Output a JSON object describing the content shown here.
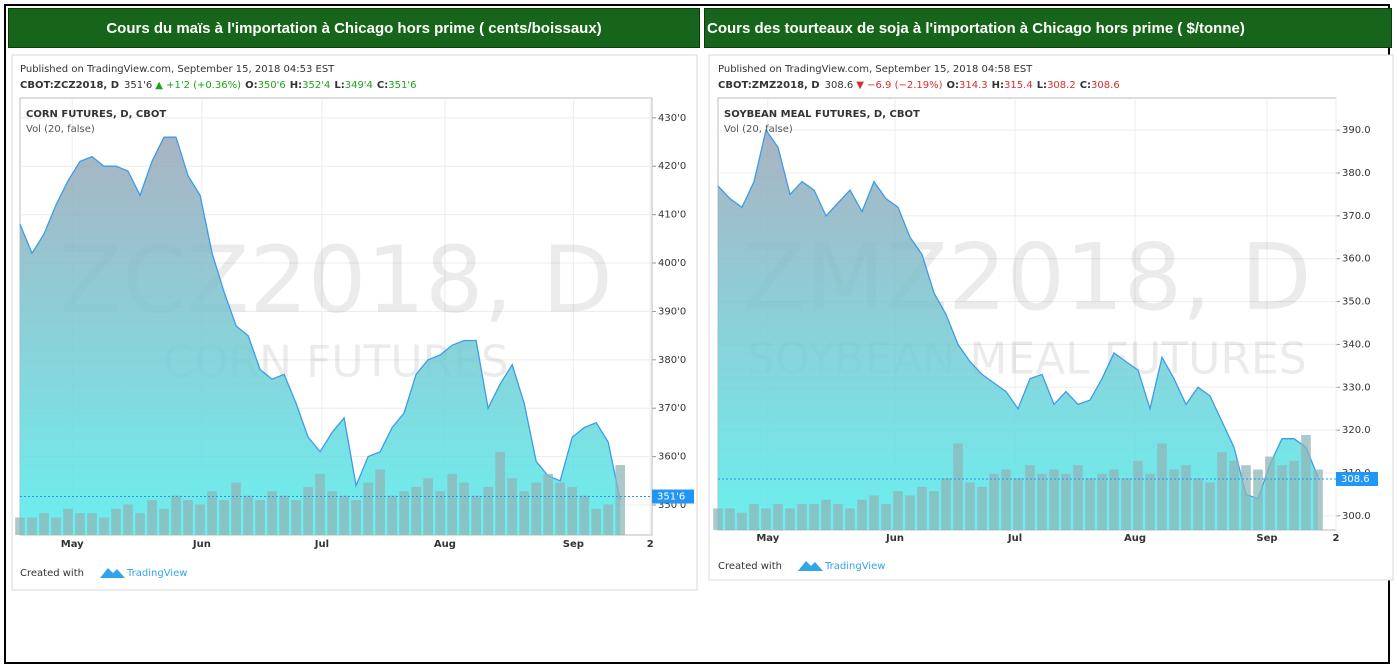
{
  "chart_data": [
    {
      "type": "area",
      "title": "Cours du maïs à l'importation à Chicago hors prime ( cents/boissaux)",
      "published": "Published on TradingView.com, September 15, 2018 04:53 EST",
      "quote": {
        "symbol": "CBOT:ZCZ2018, D",
        "last": "351'6",
        "change": "▲ +1'2 (+0.36%)",
        "color": "#1ea31e",
        "ohlc": [
          {
            "label": "O:",
            "value": "350'6"
          },
          {
            "label": "H:",
            "value": "352'4"
          },
          {
            "label": "L:",
            "value": "349'4"
          },
          {
            "label": "C:",
            "value": "351'6"
          }
        ]
      },
      "symbol_label": "CORN FUTURES, D, CBOT",
      "indicator_label": "Vol (20, false)",
      "watermark": [
        "ZCZ2018, D",
        "CORN FUTURES"
      ],
      "x": [
        0,
        2,
        4,
        6,
        8,
        10,
        12,
        14,
        16,
        18,
        20,
        22,
        24,
        26,
        28,
        30,
        32,
        34,
        36,
        38,
        40,
        42,
        44,
        46,
        48,
        50,
        52,
        54,
        56,
        58,
        60,
        62,
        64,
        66,
        68,
        70,
        72,
        74,
        76,
        78,
        80,
        82,
        84,
        86,
        88,
        90,
        92,
        94,
        96,
        98,
        100
      ],
      "xlim": [
        0,
        105.3
      ],
      "xticks": [
        {
          "value": 8.7,
          "label": "May"
        },
        {
          "value": 30.3,
          "label": "Jun"
        },
        {
          "value": 50.3,
          "label": "Jul"
        },
        {
          "value": 70.8,
          "label": "Aug"
        },
        {
          "value": 92.2,
          "label": "Sep"
        },
        {
          "value": 105,
          "label": "2"
        }
      ],
      "series": [
        {
          "color": "#3d9be9",
          "fill_colors": [
            "#9aa6b8",
            "#52ecec"
          ],
          "values": [
            408,
            402,
            406,
            412,
            417,
            421,
            422,
            420,
            420,
            419,
            414,
            421,
            426,
            426,
            418,
            414,
            402,
            394,
            387,
            385,
            378,
            376,
            377,
            371,
            364,
            361,
            365,
            368,
            354,
            360,
            361,
            366,
            369,
            377,
            380,
            381,
            383,
            384,
            384,
            370,
            375,
            379,
            371,
            359,
            356,
            355,
            364,
            366,
            367,
            363,
            351
          ]
        },
        {
          "type": "bar",
          "axis": "y2",
          "color": "#8fb6b8",
          "values": [
            4,
            4,
            5,
            4,
            6,
            5,
            5,
            4,
            6,
            7,
            5,
            8,
            6,
            9,
            8,
            7,
            10,
            8,
            12,
            9,
            8,
            10,
            9,
            8,
            11,
            14,
            10,
            9,
            8,
            12,
            15,
            9,
            10,
            11,
            13,
            10,
            14,
            12,
            9,
            11,
            19,
            13,
            10,
            12,
            14,
            12,
            11,
            9,
            6,
            7,
            16
          ]
        }
      ],
      "ylim": [
        343.8,
        434.1
      ],
      "yticks": [
        {
          "value": 350,
          "label": "350'0"
        },
        {
          "value": 360,
          "label": "360'0"
        },
        {
          "value": 370,
          "label": "370'0"
        },
        {
          "value": 380,
          "label": "380'0"
        },
        {
          "value": 390,
          "label": "390'0"
        },
        {
          "value": 400,
          "label": "400'0"
        },
        {
          "value": 410,
          "label": "410'0"
        },
        {
          "value": 420,
          "label": "420'0"
        },
        {
          "value": 430,
          "label": "430'0"
        }
      ],
      "y2lim": [
        0,
        100
      ],
      "last": {
        "value": 351.75,
        "label": "351'6",
        "color": "#2196f3"
      },
      "grid": true,
      "footer": {
        "text": "Created with",
        "brand": "TradingView"
      }
    },
    {
      "type": "area",
      "title": "Cours des tourteaux de soja à l'importation à Chicago hors prime ( $/tonne)",
      "published": "Published on TradingView.com, September 15, 2018 04:58 EST",
      "quote": {
        "symbol": "CBOT:ZMZ2018, D",
        "last": "308.6",
        "change": "▼ −6.9 (−2.19%)",
        "color": "#d32f2f",
        "ohlc": [
          {
            "label": "O:",
            "value": "314.3"
          },
          {
            "label": "H:",
            "value": "315.4"
          },
          {
            "label": "L:",
            "value": "308.2"
          },
          {
            "label": "C:",
            "value": "308.6"
          }
        ]
      },
      "symbol_label": "SOYBEAN MEAL FUTURES, D, CBOT",
      "indicator_label": "Vol (20, false)",
      "watermark": [
        "ZMZ2018, D",
        "SOYBEAN MEAL FUTURES"
      ],
      "x": [
        0,
        2,
        4,
        6,
        8,
        10,
        12,
        14,
        16,
        18,
        20,
        22,
        24,
        26,
        28,
        30,
        32,
        34,
        36,
        38,
        40,
        42,
        44,
        46,
        48,
        50,
        52,
        54,
        56,
        58,
        60,
        62,
        64,
        66,
        68,
        70,
        72,
        74,
        76,
        78,
        80,
        82,
        84,
        86,
        88,
        90,
        92,
        94,
        96,
        98,
        100
      ],
      "xlim": [
        0,
        103
      ],
      "xticks": [
        {
          "value": 8.3,
          "label": "May"
        },
        {
          "value": 29.5,
          "label": "Jun"
        },
        {
          "value": 49.5,
          "label": "Jul"
        },
        {
          "value": 69.5,
          "label": "Aug"
        },
        {
          "value": 91.5,
          "label": "Sep"
        },
        {
          "value": 103,
          "label": "2"
        }
      ],
      "series": [
        {
          "color": "#3d9be9",
          "fill_colors": [
            "#9aa6b8",
            "#52ecec"
          ],
          "values": [
            377,
            374,
            372,
            378,
            390,
            386,
            375,
            378,
            376,
            370,
            373,
            376,
            371,
            378,
            374,
            372,
            365,
            361,
            352,
            347,
            340,
            336,
            333,
            331,
            329,
            325,
            332,
            333,
            326,
            329,
            326,
            327,
            332,
            338,
            336,
            334,
            325,
            337,
            332,
            326,
            330,
            328,
            322,
            316,
            305,
            304,
            312,
            318,
            318,
            316,
            309
          ]
        },
        {
          "type": "bar",
          "axis": "y2",
          "color": "#8fb6b8",
          "values": [
            5,
            5,
            4,
            6,
            5,
            6,
            5,
            6,
            6,
            7,
            6,
            5,
            7,
            8,
            6,
            9,
            8,
            10,
            9,
            12,
            20,
            11,
            10,
            13,
            14,
            12,
            15,
            13,
            14,
            13,
            15,
            12,
            13,
            14,
            12,
            16,
            13,
            20,
            14,
            15,
            12,
            11,
            18,
            16,
            15,
            14,
            17,
            15,
            16,
            22,
            14
          ]
        }
      ],
      "ylim": [
        296.7,
        397.5
      ],
      "yticks": [
        {
          "value": 300,
          "label": "300.0"
        },
        {
          "value": 310,
          "label": "310.0"
        },
        {
          "value": 320,
          "label": "320.0"
        },
        {
          "value": 330,
          "label": "330.0"
        },
        {
          "value": 340,
          "label": "340.0"
        },
        {
          "value": 350,
          "label": "350.0"
        },
        {
          "value": 360,
          "label": "360.0"
        },
        {
          "value": 370,
          "label": "370.0"
        },
        {
          "value": 380,
          "label": "380.0"
        },
        {
          "value": 390,
          "label": "390.0"
        }
      ],
      "y2lim": [
        0,
        100
      ],
      "last": {
        "value": 308.6,
        "label": "308.6",
        "color": "#2196f3"
      },
      "grid": true,
      "footer": {
        "text": "Created with",
        "brand": "TradingView"
      }
    }
  ]
}
